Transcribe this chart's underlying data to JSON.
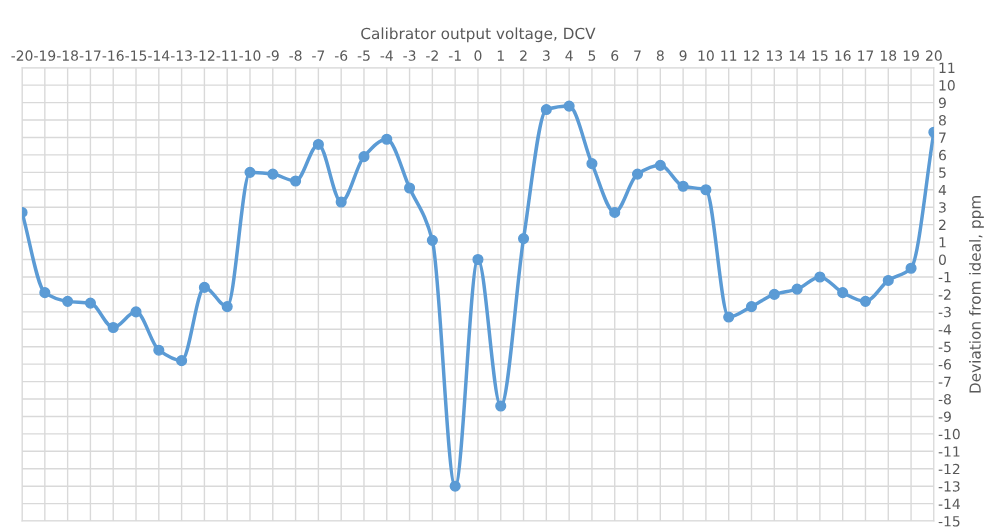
{
  "chart_data": {
    "type": "line",
    "xlabel": "Calibrator output voltage, DCV",
    "ylabel": "Deviation from ideal, ppm",
    "categories": [
      "-20",
      "-19",
      "-18",
      "-17",
      "-16",
      "-15",
      "-14",
      "-13",
      "-12",
      "-11",
      "-10",
      "-9",
      "-8",
      "-7",
      "-6",
      "-5",
      "-4",
      "-3",
      "-2",
      "-1",
      "0",
      "1",
      "2",
      "3",
      "4",
      "5",
      "6",
      "7",
      "8",
      "9",
      "10",
      "11",
      "12",
      "13",
      "14",
      "15",
      "16",
      "17",
      "18",
      "19",
      "20"
    ],
    "series": [
      {
        "color": "#5b9bd5",
        "values": [
          2.7,
          -1.9,
          -2.4,
          -2.5,
          -3.9,
          -3.0,
          -5.2,
          -5.8,
          -1.6,
          -2.7,
          5.0,
          4.9,
          4.5,
          6.6,
          3.3,
          5.9,
          6.9,
          4.1,
          1.1,
          -13.0,
          0.0,
          -8.4,
          1.2,
          8.6,
          8.8,
          5.5,
          2.7,
          4.9,
          5.4,
          4.2,
          4.0,
          -3.3,
          -2.7,
          -2.0,
          -1.7,
          -1.0,
          -1.9,
          -2.4,
          -1.2,
          -0.5,
          7.3
        ]
      }
    ],
    "ylim": [
      -15,
      11
    ],
    "yticks": [
      -15,
      -14,
      -13,
      -12,
      -11,
      -10,
      -9,
      -8,
      -7,
      -6,
      -5,
      -4,
      -3,
      -2,
      -1,
      0,
      1,
      2,
      3,
      4,
      5,
      6,
      7,
      8,
      9,
      10,
      11
    ],
    "grid": true,
    "marker": "circle",
    "line_style": "solid"
  }
}
